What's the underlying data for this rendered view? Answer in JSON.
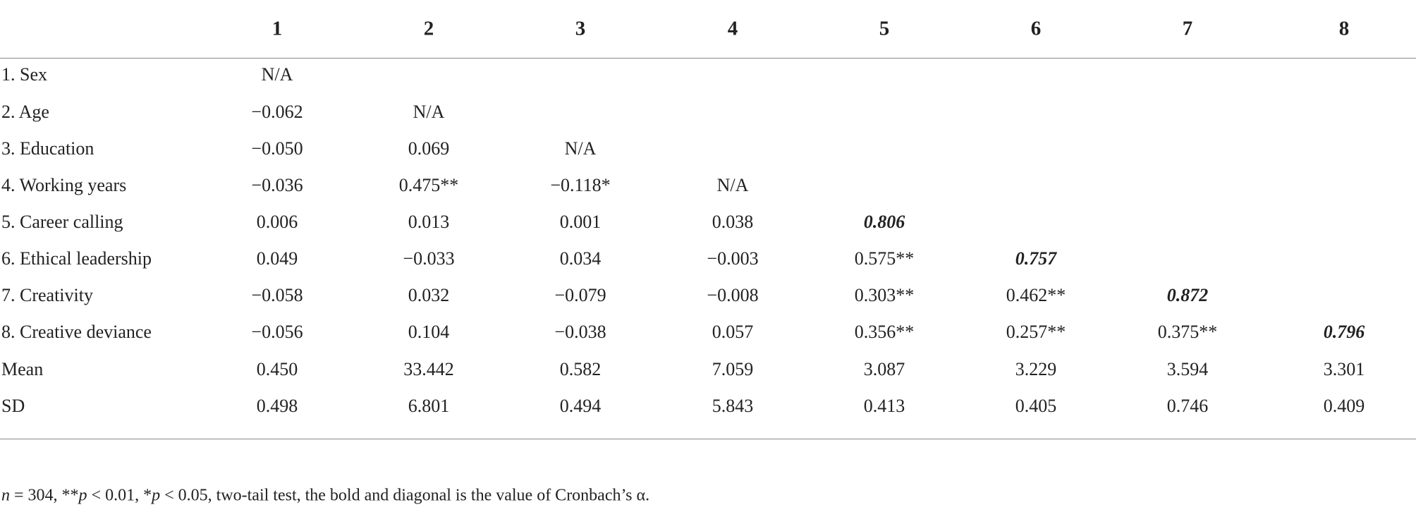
{
  "table": {
    "columns": [
      "1",
      "2",
      "3",
      "4",
      "5",
      "6",
      "7",
      "8"
    ],
    "rows": [
      {
        "label": "1. Sex",
        "cells": [
          "N/A"
        ]
      },
      {
        "label": "2. Age",
        "cells": [
          "−0.062",
          "N/A"
        ]
      },
      {
        "label": "3. Education",
        "cells": [
          "−0.050",
          "0.069",
          "N/A"
        ]
      },
      {
        "label": "4. Working years",
        "cells": [
          "−0.036",
          "0.475**",
          "−0.118*",
          "N/A"
        ]
      },
      {
        "label": "5. Career calling",
        "cells": [
          "0.006",
          "0.013",
          "0.001",
          "0.038",
          "0.806"
        ]
      },
      {
        "label": "6. Ethical leadership",
        "cells": [
          "0.049",
          "−0.033",
          "0.034",
          "−0.003",
          "0.575**",
          "0.757"
        ]
      },
      {
        "label": "7. Creativity",
        "cells": [
          "−0.058",
          "0.032",
          "−0.079",
          "−0.008",
          "0.303**",
          "0.462**",
          "0.872"
        ]
      },
      {
        "label": "8. Creative deviance",
        "cells": [
          "−0.056",
          "0.104",
          "−0.038",
          "0.057",
          "0.356**",
          "0.257**",
          "0.375**",
          "0.796"
        ]
      },
      {
        "label": "Mean",
        "cells": [
          "0.450",
          "33.442",
          "0.582",
          "7.059",
          "3.087",
          "3.229",
          "3.594",
          "3.301"
        ]
      },
      {
        "label": "SD",
        "cells": [
          "0.498",
          "6.801",
          "0.494",
          "5.843",
          "0.413",
          "0.405",
          "0.746",
          "0.409"
        ]
      }
    ]
  },
  "footnote": {
    "parts": [
      "n",
      " = 304, **",
      "p",
      " < 0.01, *",
      "p",
      " < 0.05, two-tail test, the bold and diagonal is the value of Cronbach’s α."
    ]
  }
}
